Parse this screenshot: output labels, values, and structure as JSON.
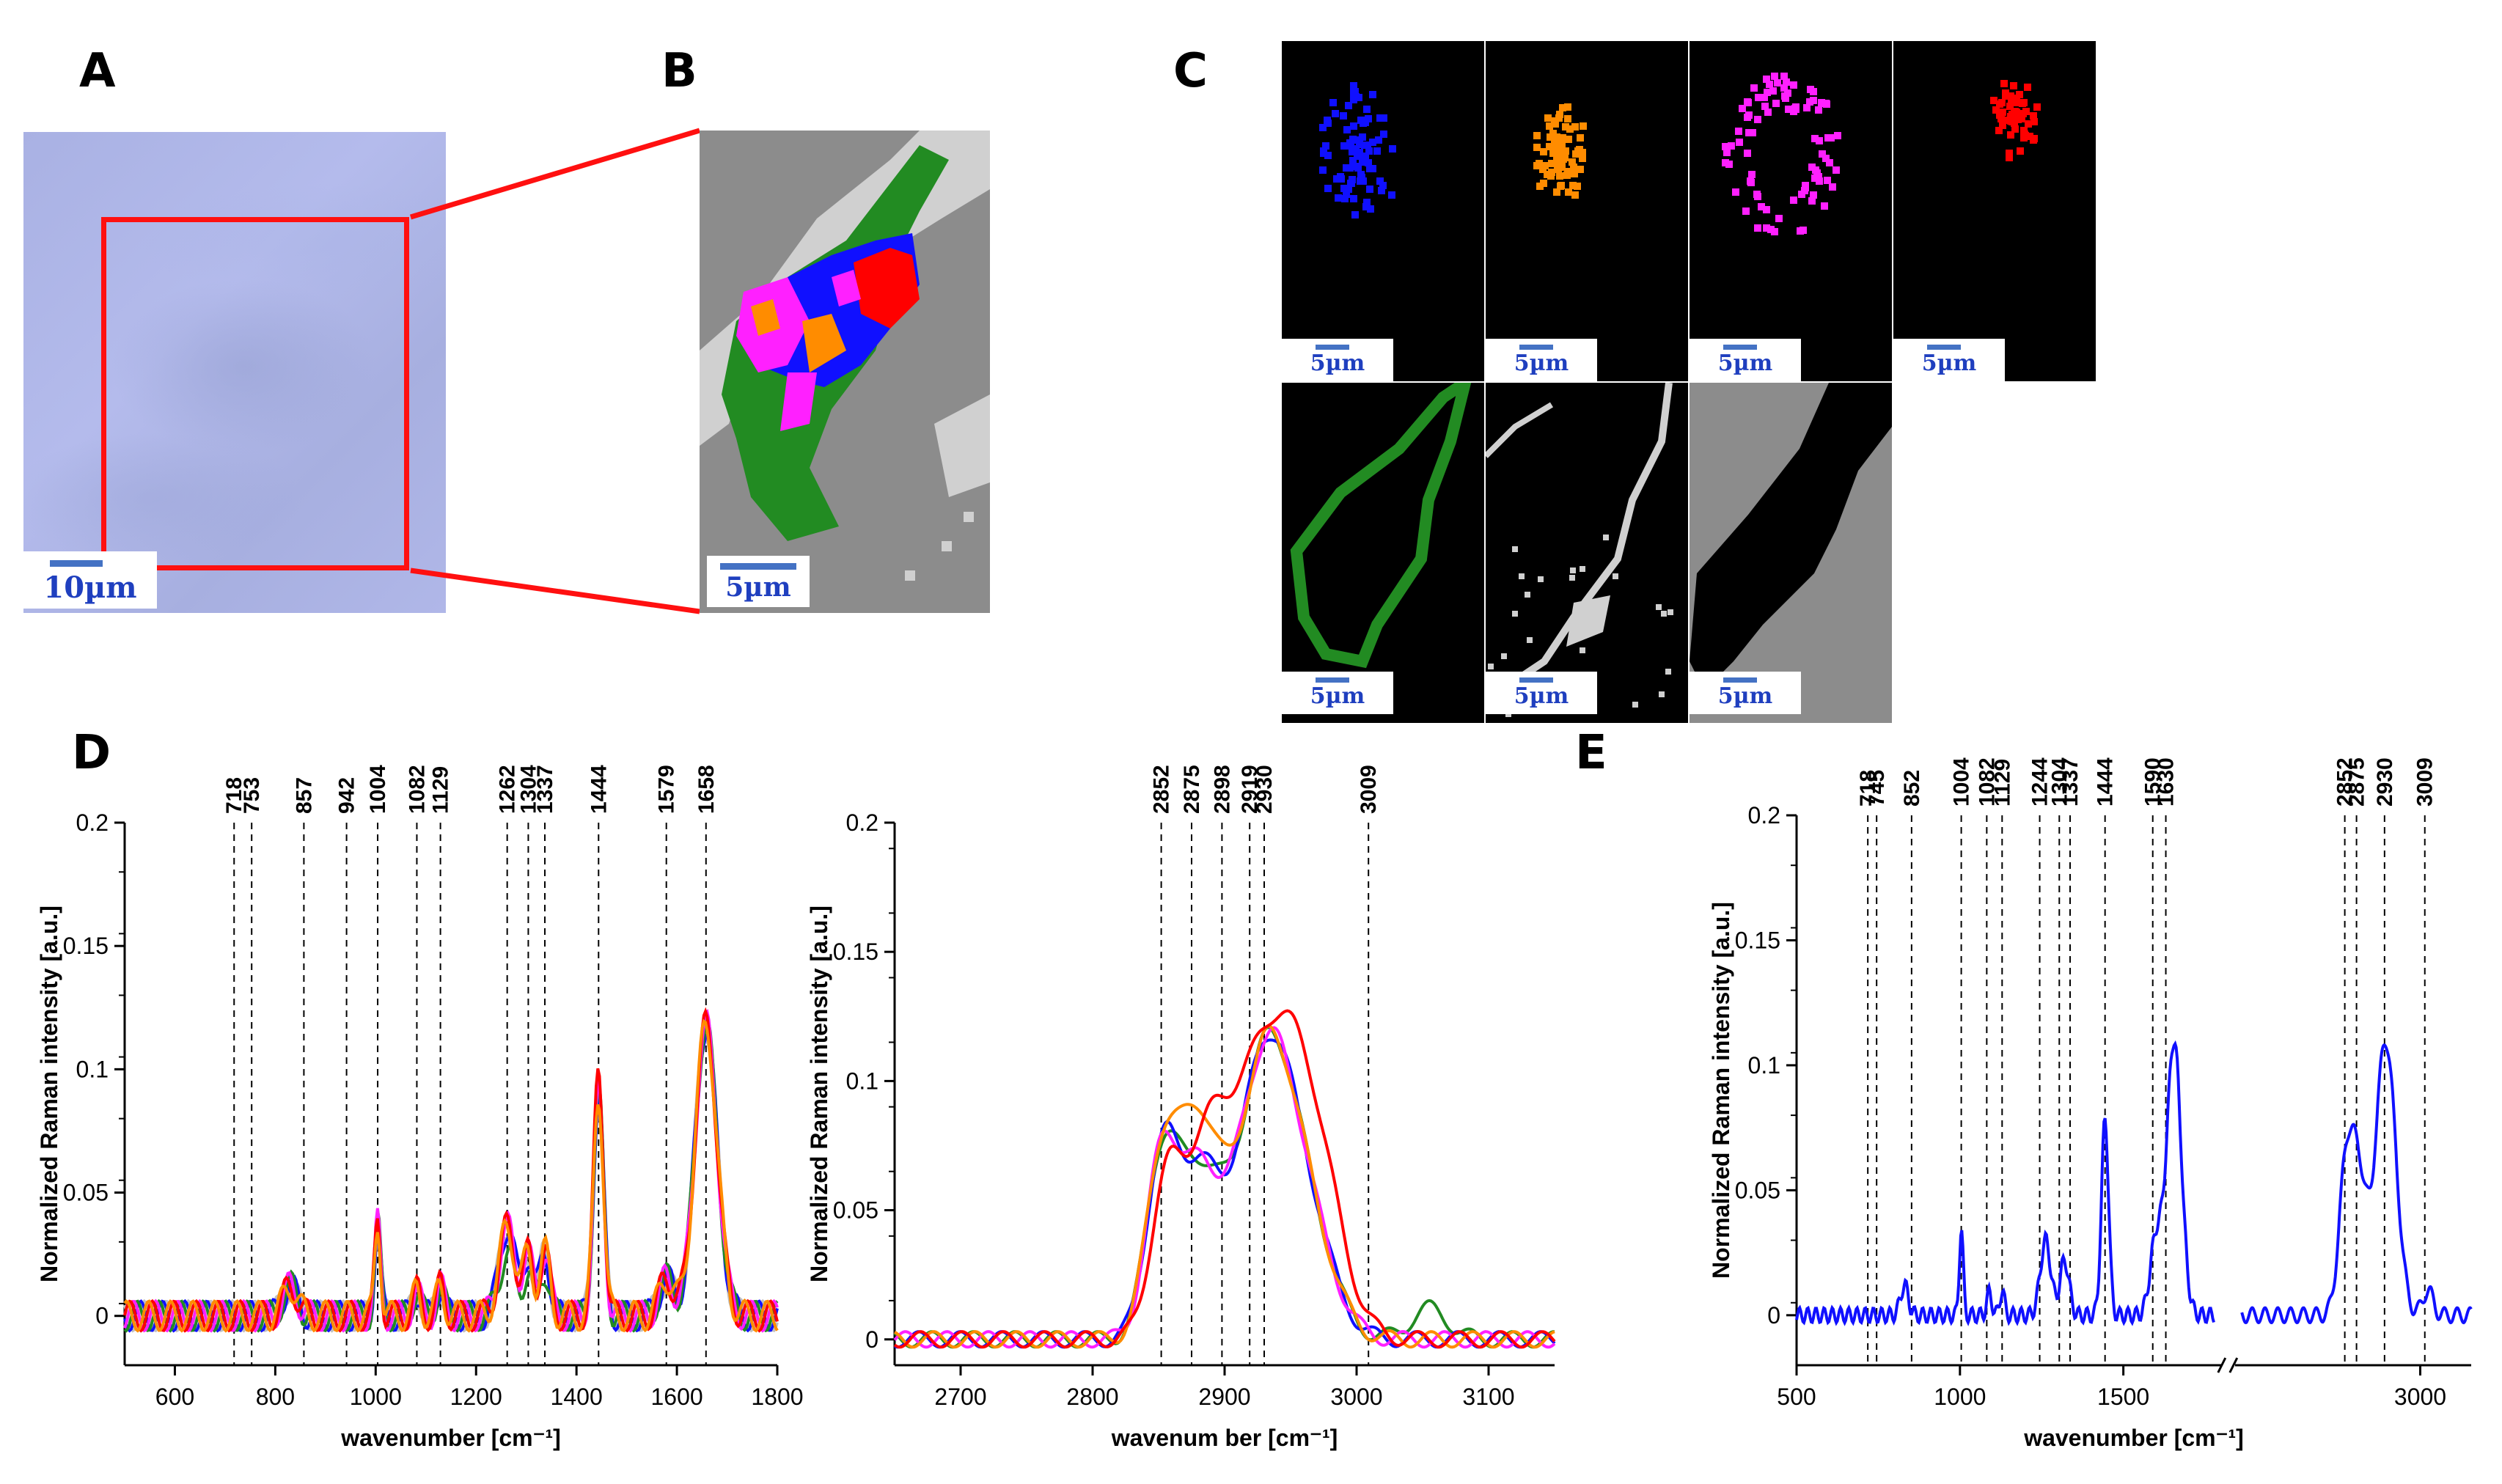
{
  "panels": {
    "A": {
      "label": "A",
      "scalebar": "10µm"
    },
    "B": {
      "label": "B",
      "scalebar": "5µm"
    },
    "C": {
      "label": "C",
      "scalebar": "5µm",
      "tiles": [
        {
          "name": "blue-cluster",
          "color": "#1010ff"
        },
        {
          "name": "orange-cluster",
          "color": "#ff8c00"
        },
        {
          "name": "magenta-cluster",
          "color": "#ff20ff"
        },
        {
          "name": "red-cluster",
          "color": "#ff0000"
        },
        {
          "name": "green-cluster",
          "color": "#228b22"
        },
        {
          "name": "lightgray-cluster",
          "color": "#d0d0d0"
        },
        {
          "name": "gray-cluster",
          "color": "#8c8c8c"
        }
      ]
    },
    "D": {
      "label": "D"
    },
    "E": {
      "label": "E"
    }
  },
  "chart_data": [
    {
      "id": "D-fingerprint",
      "type": "line",
      "xlabel": "wavenumber [cm⁻¹]",
      "ylabel": "Normalized Raman intensity [a.u.]",
      "xlim": [
        500,
        1800
      ],
      "ylim": [
        -0.02,
        0.2
      ],
      "xticks": [
        600,
        800,
        1000,
        1200,
        1400,
        1600,
        1800
      ],
      "yticks": [
        0,
        0.05,
        0.1,
        0.15,
        0.2
      ],
      "ytick_labels": [
        "0",
        "0.05",
        "0.1",
        "0.15",
        "0.2"
      ],
      "peaks": [
        718,
        753,
        857,
        942,
        1004,
        1082,
        1129,
        1262,
        1304,
        1337,
        1444,
        1579,
        1658
      ],
      "series_colors": [
        "#c0c0c0",
        "#1010ff",
        "#228b22",
        "#ff20ff",
        "#ff0000",
        "#ff8c00"
      ],
      "bands": [
        [
          1004,
          0.038,
          6
        ],
        [
          1082,
          0.01,
          8
        ],
        [
          1129,
          0.012,
          8
        ],
        [
          1262,
          0.036,
          16
        ],
        [
          1304,
          0.024,
          10
        ],
        [
          1337,
          0.026,
          10
        ],
        [
          1444,
          0.09,
          10
        ],
        [
          1579,
          0.015,
          14
        ],
        [
          1658,
          0.118,
          22
        ]
      ]
    },
    {
      "id": "D-highwavenumber",
      "type": "line",
      "xlabel": "wavenum ber [cm⁻¹]",
      "ylabel": "Normalized Raman intensity [a.u.]",
      "xlim": [
        2650,
        3150
      ],
      "ylim": [
        -0.01,
        0.2
      ],
      "xticks": [
        2700,
        2800,
        2900,
        3000,
        3100
      ],
      "yticks": [
        0,
        0.05,
        0.1,
        0.15,
        0.2
      ],
      "ytick_labels": [
        "0",
        "0.05",
        "0.1",
        "0.15",
        "0.2"
      ],
      "peaks": [
        2852,
        2875,
        2898,
        2919,
        2930,
        3009
      ],
      "series_colors": [
        "#228b22",
        "#1010ff",
        "#ff20ff",
        "#ff8c00",
        "#ff0000"
      ]
    },
    {
      "id": "E",
      "type": "line",
      "xlabel": "wavenumber [cm⁻¹]",
      "ylabel": "Normalized Raman intensity [a.u.]",
      "xlim": [
        500,
        3100
      ],
      "ylim": [
        -0.02,
        0.2
      ],
      "xticks": [
        500,
        1000,
        1500,
        3000
      ],
      "yticks": [
        0,
        0.05,
        0.1,
        0.15,
        0.2
      ],
      "ytick_labels": [
        "0",
        "0.05",
        "0.1",
        "0.15",
        "0.2"
      ],
      "axis_break": [
        1780,
        2650
      ],
      "peaks": [
        718,
        745,
        852,
        1004,
        1082,
        1129,
        1244,
        1304,
        1337,
        1444,
        1590,
        1630,
        2852,
        2875,
        2930,
        3009
      ],
      "series_colors": [
        "#1010ff"
      ]
    }
  ]
}
